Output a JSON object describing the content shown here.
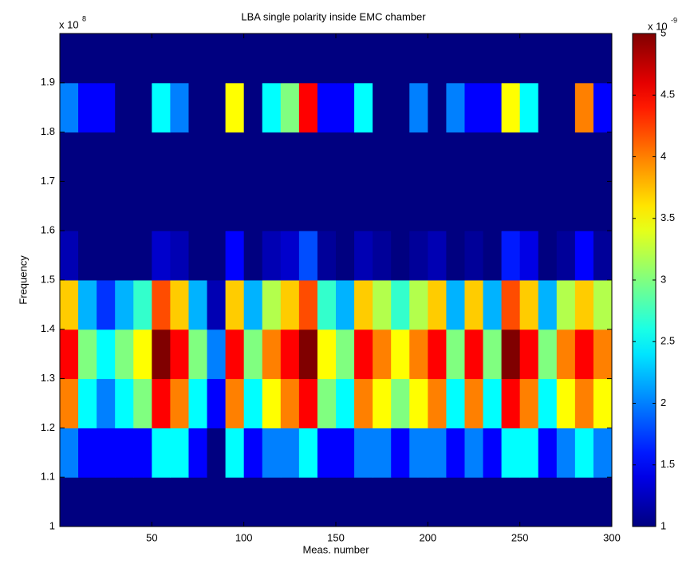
{
  "chart_data": {
    "type": "heatmap",
    "title": "LBA single polarity inside EMC chamber",
    "xlabel": "Meas. number",
    "ylabel": "Frequency",
    "y_multiplier": {
      "base": "x 10",
      "exponent": "8"
    },
    "colorbar_multiplier": {
      "base": "x 10",
      "exponent": "-9"
    },
    "colormap": "jet",
    "xlim": [
      0,
      300
    ],
    "xticks": [
      50,
      100,
      150,
      200,
      250,
      300
    ],
    "ylim": [
      1,
      2
    ],
    "yticks": [
      1,
      1.1,
      1.2,
      1.3,
      1.4,
      1.5,
      1.6,
      1.7,
      1.8,
      1.9
    ],
    "clim": [
      1,
      5
    ],
    "cticks": [
      1,
      1.5,
      2,
      2.5,
      3,
      3.5,
      4,
      4.5,
      5
    ],
    "x_edges": [
      0,
      10,
      20,
      30,
      40,
      50,
      60,
      70,
      80,
      90,
      100,
      110,
      120,
      130,
      140,
      150,
      160,
      170,
      180,
      190,
      200,
      210,
      220,
      230,
      240,
      250,
      260,
      270,
      280,
      290,
      300
    ],
    "y_edges": [
      1,
      1.1,
      1.2,
      1.3,
      1.4,
      1.5,
      1.6,
      1.7,
      1.8,
      1.9,
      2
    ],
    "z": [
      [
        1,
        1,
        1,
        1,
        1,
        1,
        1,
        1,
        1,
        1,
        1,
        1,
        1,
        1,
        1,
        1,
        1,
        1,
        1,
        1,
        1,
        1,
        1,
        1,
        1,
        1,
        1,
        1,
        1,
        1
      ],
      [
        2,
        1.5,
        1.5,
        1.5,
        1.5,
        2.5,
        2.5,
        1.5,
        1,
        2.5,
        1.5,
        2,
        2,
        2.5,
        1.5,
        1.5,
        2,
        2,
        1.5,
        2,
        2,
        1.5,
        2,
        1.5,
        2.5,
        2.5,
        1.5,
        2,
        2.5,
        2
      ],
      [
        4,
        2.5,
        2,
        2.5,
        3,
        4.5,
        4,
        2.5,
        1.5,
        4,
        2.5,
        3.5,
        4,
        4.5,
        3,
        2.5,
        4,
        3.5,
        3,
        3.5,
        4,
        2.5,
        4,
        2.5,
        4.5,
        4,
        2.5,
        3.5,
        4,
        3.5
      ],
      [
        4.5,
        3,
        2.5,
        3,
        3.5,
        5,
        4.5,
        3,
        2,
        4.5,
        3,
        4,
        4.5,
        5,
        3.5,
        3,
        4.5,
        4,
        3.5,
        4,
        4.5,
        3,
        4.5,
        3,
        5,
        4.5,
        3,
        4,
        4.5,
        4
      ],
      [
        3.7,
        2.2,
        1.7,
        2.2,
        2.7,
        4.2,
        3.7,
        2.2,
        1.2,
        3.7,
        2.2,
        3.2,
        3.7,
        4.2,
        2.7,
        2.2,
        3.7,
        3.2,
        2.7,
        3.2,
        3.7,
        2.2,
        3.7,
        2.2,
        4.2,
        3.7,
        2.2,
        3.2,
        3.7,
        3.2
      ],
      [
        1.2,
        1,
        1,
        1,
        1,
        1.3,
        1.2,
        1,
        1,
        1.5,
        1,
        1.2,
        1.3,
        1.8,
        1.1,
        1,
        1.2,
        1.1,
        1,
        1.1,
        1.2,
        1,
        1.1,
        1,
        1.6,
        1.4,
        1,
        1.1,
        1.5,
        1.1
      ],
      [
        1,
        1,
        1,
        1,
        1,
        1,
        1,
        1,
        1,
        1,
        1,
        1,
        1,
        1,
        1,
        1,
        1,
        1,
        1,
        1,
        1,
        1,
        1,
        1,
        1,
        1,
        1,
        1,
        1,
        1
      ],
      [
        1,
        1,
        1,
        1,
        1,
        1,
        1,
        1,
        1,
        1,
        1,
        1,
        1,
        1,
        1,
        1,
        1,
        1,
        1,
        1,
        1,
        1,
        1,
        1,
        1,
        1,
        1,
        1,
        1,
        1
      ],
      [
        2,
        1.5,
        1.5,
        1,
        1,
        2.5,
        2,
        1,
        1,
        3.5,
        1,
        2.5,
        3,
        4.5,
        1.5,
        1.5,
        2.5,
        1,
        1,
        2,
        1,
        2,
        1.5,
        1.5,
        3.5,
        2.5,
        1,
        1,
        4,
        1.5
      ],
      [
        1,
        1,
        1,
        1,
        1,
        1,
        1,
        1,
        1,
        1,
        1,
        1,
        1,
        1,
        1,
        1,
        1,
        1,
        1,
        1,
        1,
        1,
        1,
        1,
        1,
        1,
        1,
        1,
        1,
        1
      ]
    ]
  }
}
